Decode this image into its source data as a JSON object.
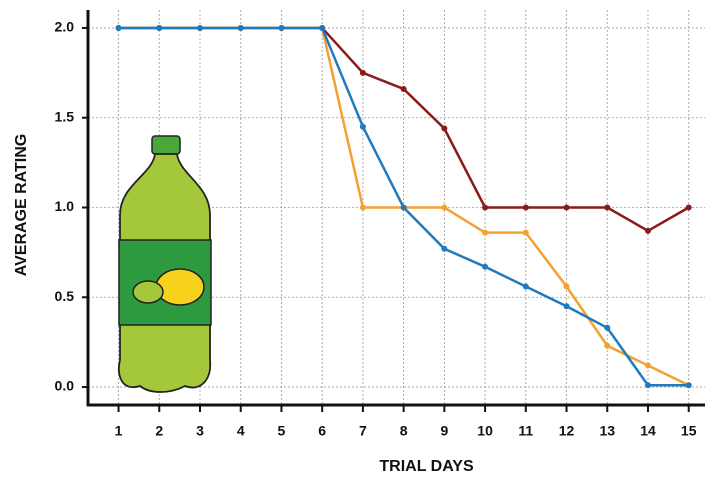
{
  "chart_data": {
    "type": "line",
    "x": [
      1,
      2,
      3,
      4,
      5,
      6,
      7,
      8,
      9,
      10,
      11,
      12,
      13,
      14,
      15
    ],
    "xlabel": "TRIAL DAYS",
    "ylabel": "AVERAGE RATING",
    "xlim": [
      0.25,
      15.4
    ],
    "xticks": [
      1,
      2,
      3,
      4,
      5,
      6,
      7,
      8,
      9,
      10,
      11,
      12,
      13,
      14,
      15
    ],
    "ylim": [
      -0.1,
      2.1
    ],
    "yticks": [
      {
        "value": 0,
        "label": "0.0"
      },
      {
        "value": 0.5,
        "label": "0.5"
      },
      {
        "value": 1,
        "label": "1.0"
      },
      {
        "value": 1.5,
        "label": "1.5"
      },
      {
        "value": 2,
        "label": "2.0"
      }
    ],
    "grid": true,
    "series": [
      {
        "color": "#8b1a1a",
        "values": [
          2,
          2,
          2,
          2,
          2,
          2,
          1.75,
          1.66,
          1.44,
          1,
          1,
          1,
          1,
          0.87,
          1
        ]
      },
      {
        "color": "#f5a131",
        "values": [
          2,
          2,
          2,
          2,
          2,
          2,
          1,
          1,
          1,
          0.86,
          0.86,
          0.56,
          0.23,
          0.12,
          0.01
        ]
      },
      {
        "color": "#1f7bbf",
        "values": [
          2,
          2,
          2,
          2,
          2,
          2,
          1.45,
          1,
          0.77,
          0.67,
          0.56,
          0.45,
          0.33,
          0.01,
          0.01
        ]
      }
    ]
  }
}
